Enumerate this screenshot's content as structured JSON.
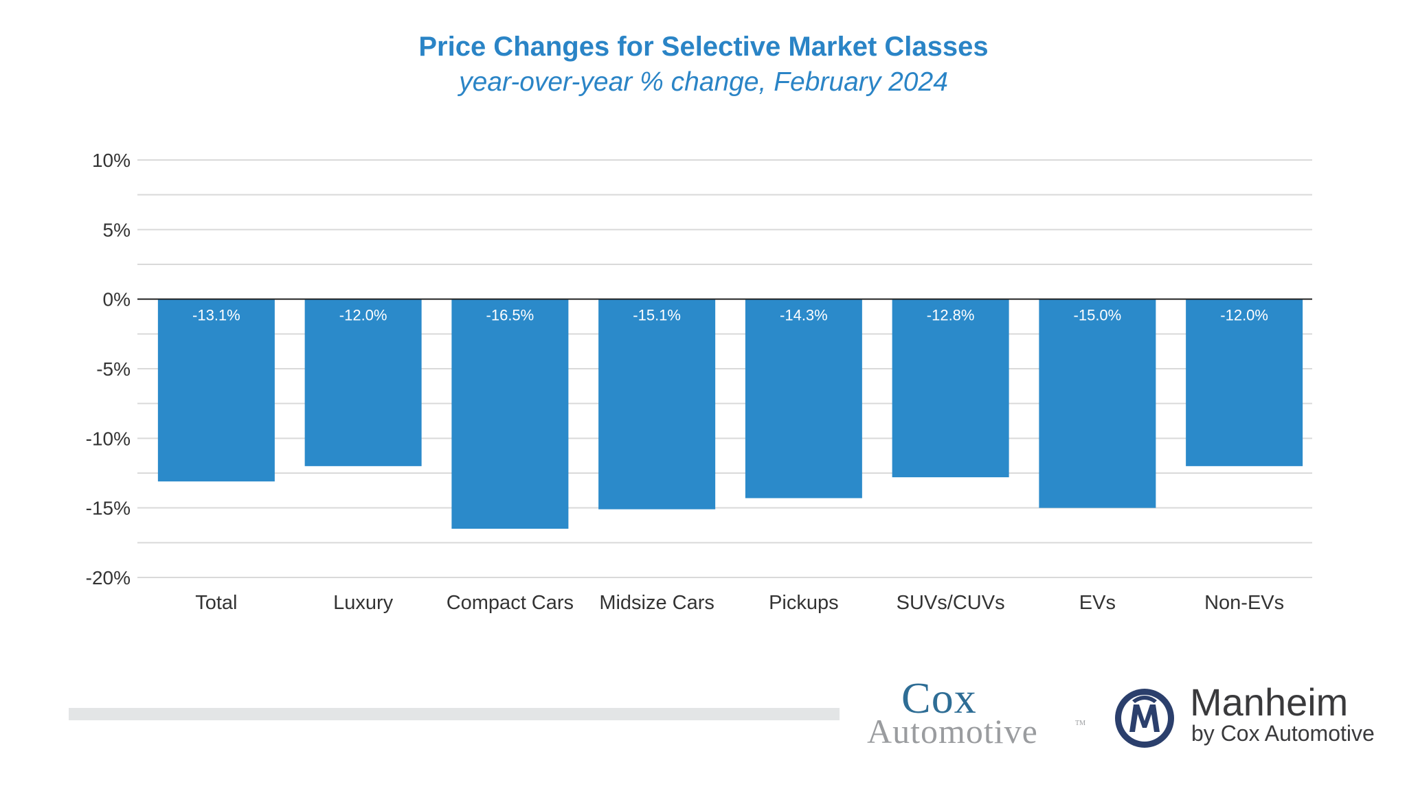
{
  "chart_data": {
    "type": "bar",
    "title": "Price Changes for Selective Market Classes",
    "subtitle": "year-over-year % change, February 2024",
    "categories": [
      "Total",
      "Luxury",
      "Compact Cars",
      "Midsize Cars",
      "Pickups",
      "SUVs/CUVs",
      "EVs",
      "Non-EVs"
    ],
    "values": [
      -13.1,
      -12.0,
      -16.5,
      -15.1,
      -14.3,
      -12.8,
      -15.0,
      -12.0
    ],
    "data_labels": [
      "-13.1%",
      "-12.0%",
      "-16.5%",
      "-15.1%",
      "-14.3%",
      "-12.8%",
      "-15.0%",
      "-12.0%"
    ],
    "ylim": [
      -20,
      10
    ],
    "yticks": [
      10,
      5,
      0,
      -5,
      -10,
      -15,
      -20
    ],
    "ytick_labels": [
      "10%",
      "5%",
      "0%",
      "-5%",
      "-10%",
      "-15%",
      "-20%"
    ],
    "minor_gridlines": [
      7.5,
      2.5,
      -2.5,
      -7.5,
      -12.5,
      -17.5
    ],
    "grid": true,
    "bar_color": "#2b8aca",
    "xlabel": "",
    "ylabel": ""
  },
  "logos": {
    "cox_top": "Cox",
    "cox_bottom": "Automotive",
    "cox_tm": "TM",
    "manheim_name": "Manheim",
    "manheim_by": "by Cox Automotive",
    "cox_color": "#2e6d95",
    "manheim_color": "#2b3f6c"
  }
}
